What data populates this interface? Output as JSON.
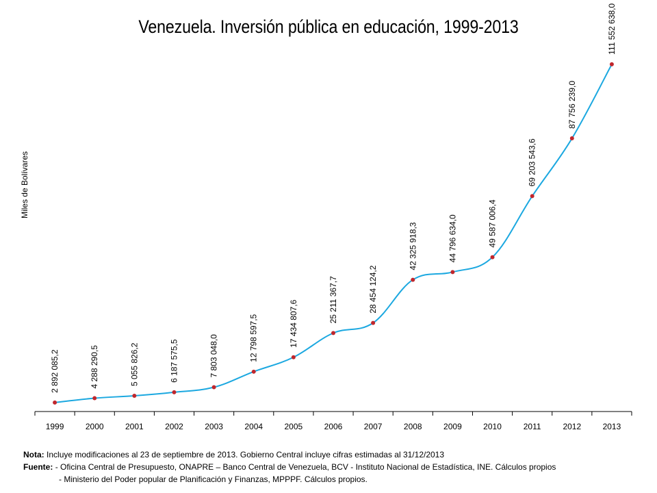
{
  "chart_data": {
    "type": "line",
    "title": "Venezuela. Inversión pública en educación, 1999-2013",
    "ylabel": "Miles de Bolívares",
    "xlabel": "",
    "categories": [
      "1999",
      "2000",
      "2001",
      "2002",
      "2003",
      "2004",
      "2005",
      "2006",
      "2007",
      "2008",
      "2009",
      "2010",
      "2011",
      "2012",
      "2013"
    ],
    "values": [
      2892085.2,
      4288290.5,
      5055826.2,
      6187575.5,
      7803048.0,
      12798597.5,
      17434807.6,
      25211367.7,
      28454124.2,
      42325918.3,
      44796634.0,
      49587006.4,
      69203543.6,
      87756239.0,
      111552638.0
    ],
    "data_labels": [
      "2 892 085,2",
      "4 288 290,5",
      "5 055 826,2",
      "6 187 575,5",
      "7 803 048,0",
      "12 798 597,5",
      "17 434 807,6",
      "25 211 367,7",
      "28 454 124,2",
      "42 325 918,3",
      "44 796 634,0",
      "49 587 006,4",
      "69 203 543,6",
      "87 756 239,0",
      "111 552 638,0"
    ],
    "ylim": [
      0,
      130000000
    ],
    "grid": false,
    "legend": "none",
    "line_color": "#1ba8e0",
    "marker_color": "#c0272d"
  },
  "notes": {
    "nota_label": "Nota:",
    "nota_text": "Incluye modificaciones al 23 de septiembre de 2013. Gobierno Central incluye cifras estimadas al 31/12/2013",
    "fuente_label": "Fuente:",
    "fuente_line1": "- Oficina Central de Presupuesto, ONAPRE – Banco Central de Venezuela, BCV  - Instituto Nacional de Estadística, INE. Cálculos propios",
    "fuente_line2": "- Ministerio del Poder popular de Planificación y Finanzas, MPPPF. Cálculos propios."
  }
}
